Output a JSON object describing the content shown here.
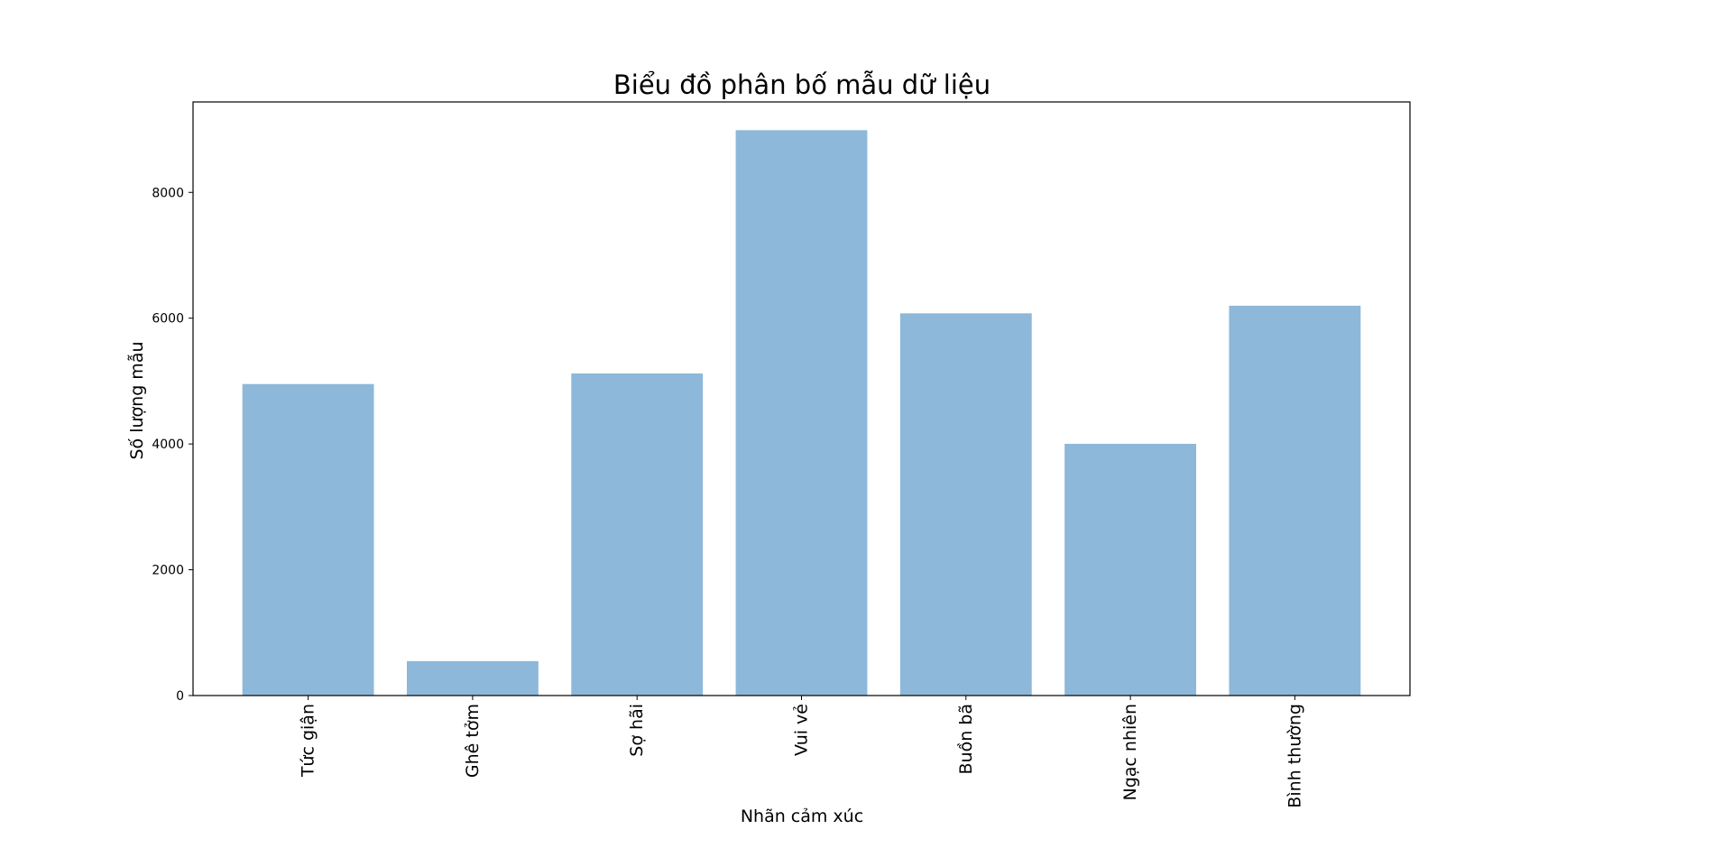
{
  "chart_data": {
    "type": "bar",
    "title": "Biểu đồ phân bố mẫu dữ liệu",
    "xlabel": "Nhãn cảm xúc",
    "ylabel": "Số lượng mẫu",
    "categories": [
      "Tức giận",
      "Ghê tởm",
      "Sợ hãi",
      "Vui vẻ",
      "Buồn bã",
      "Ngạc nhiên",
      "Bình thường"
    ],
    "values": [
      4953,
      547,
      5121,
      8989,
      6077,
      4002,
      6198
    ],
    "ylim": [
      0,
      9438
    ],
    "yticks": [
      0,
      2000,
      4000,
      6000,
      8000
    ],
    "ytick_labels": [
      "0",
      "2000",
      "4000",
      "6000",
      "8000"
    ],
    "grid": false,
    "bar_color": "#8db8d9",
    "x_tick_rotation": "vertical"
  }
}
